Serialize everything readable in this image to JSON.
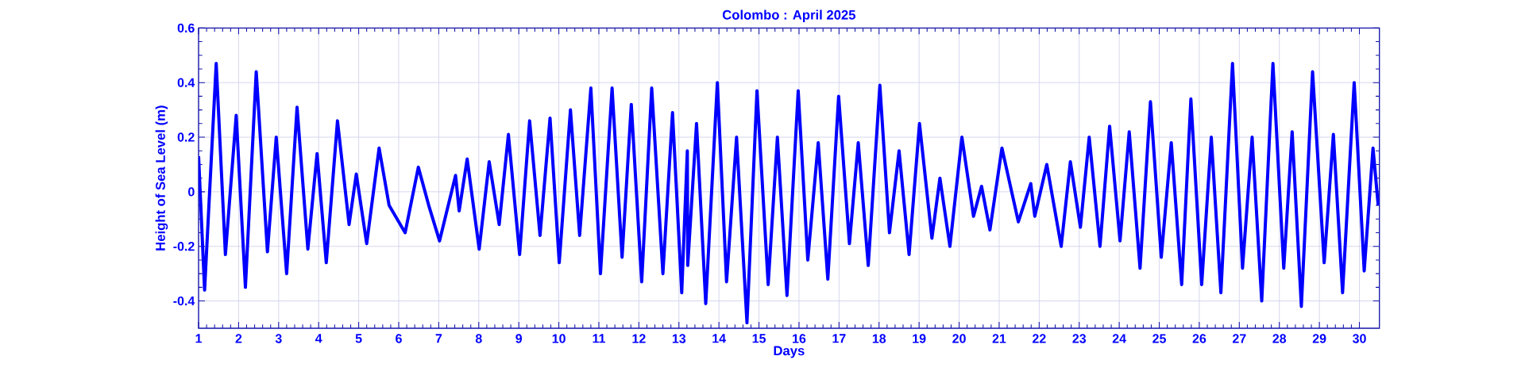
{
  "chart_data": {
    "type": "line",
    "title": "Colombo : April 2025",
    "xlabel": "Days",
    "ylabel": "Height of Sea Level (m)",
    "xlim": [
      1,
      30.5
    ],
    "ylim": [
      -0.5,
      0.6
    ],
    "xticks": [
      1,
      2,
      3,
      4,
      5,
      6,
      7,
      8,
      9,
      10,
      11,
      12,
      13,
      14,
      15,
      16,
      17,
      18,
      19,
      20,
      21,
      22,
      23,
      24,
      25,
      26,
      27,
      28,
      29,
      30
    ],
    "yticks": [
      -0.4,
      -0.2,
      0,
      0.2,
      0.4,
      0.6
    ],
    "grid": true,
    "series": [
      {
        "color": "#0000ff",
        "x": [
          1.0,
          1.15,
          1.44,
          1.67,
          1.94,
          2.17,
          2.44,
          2.72,
          2.94,
          3.2,
          3.46,
          3.73,
          3.96,
          4.19,
          4.47,
          4.76,
          4.94,
          5.2,
          5.51,
          5.76,
          6.16,
          6.49,
          6.75,
          7.02,
          7.42,
          7.51,
          7.71,
          8.01,
          8.26,
          8.51,
          8.74,
          9.02,
          9.27,
          9.53,
          9.78,
          10.01,
          10.29,
          10.52,
          10.8,
          11.04,
          11.33,
          11.58,
          11.81,
          12.07,
          12.32,
          12.6,
          12.84,
          13.07,
          13.21,
          13.22,
          13.44,
          13.67,
          13.96,
          14.19,
          14.44,
          14.7,
          14.95,
          15.23,
          15.46,
          15.7,
          15.98,
          16.22,
          16.48,
          16.72,
          16.99,
          17.26,
          17.48,
          17.73,
          18.02,
          18.26,
          18.5,
          18.75,
          19.01,
          19.32,
          19.52,
          19.77,
          20.07,
          20.36,
          20.56,
          20.77,
          21.07,
          21.48,
          21.79,
          21.89,
          22.19,
          22.55,
          22.78,
          23.03,
          23.25,
          23.52,
          23.76,
          24.02,
          24.25,
          24.52,
          24.78,
          25.05,
          25.3,
          25.56,
          25.79,
          26.06,
          26.3,
          26.54,
          26.83,
          27.08,
          27.32,
          27.56,
          27.84,
          28.11,
          28.32,
          28.55,
          28.83,
          29.12,
          29.35,
          29.58,
          29.87,
          30.12,
          30.34,
          30.47
        ],
        "values": [
          0.13,
          -0.36,
          0.47,
          -0.23,
          0.28,
          -0.35,
          0.44,
          -0.22,
          0.2,
          -0.3,
          0.31,
          -0.21,
          0.14,
          -0.26,
          0.26,
          -0.12,
          0.065,
          -0.19,
          0.16,
          -0.05,
          -0.15,
          0.09,
          -0.05,
          -0.18,
          0.06,
          -0.07,
          0.12,
          -0.21,
          0.11,
          -0.12,
          0.21,
          -0.23,
          0.26,
          -0.16,
          0.27,
          -0.26,
          0.3,
          -0.16,
          0.38,
          -0.3,
          0.38,
          -0.24,
          0.32,
          -0.33,
          0.38,
          -0.3,
          0.29,
          -0.37,
          0.15,
          -0.27,
          0.25,
          -0.41,
          0.4,
          -0.33,
          0.2,
          -0.48,
          0.37,
          -0.34,
          0.2,
          -0.38,
          0.37,
          -0.25,
          0.18,
          -0.32,
          0.35,
          -0.19,
          0.18,
          -0.27,
          0.39,
          -0.15,
          0.15,
          -0.23,
          0.25,
          -0.17,
          0.05,
          -0.2,
          0.2,
          -0.09,
          0.02,
          -0.14,
          0.16,
          -0.11,
          0.03,
          -0.09,
          0.1,
          -0.2,
          0.11,
          -0.13,
          0.2,
          -0.2,
          0.24,
          -0.18,
          0.22,
          -0.28,
          0.33,
          -0.24,
          0.18,
          -0.34,
          0.34,
          -0.34,
          0.2,
          -0.37,
          0.47,
          -0.28,
          0.2,
          -0.4,
          0.47,
          -0.28,
          0.22,
          -0.42,
          0.44,
          -0.26,
          0.21,
          -0.37,
          0.4,
          -0.29,
          0.16,
          -0.05
        ]
      }
    ]
  }
}
